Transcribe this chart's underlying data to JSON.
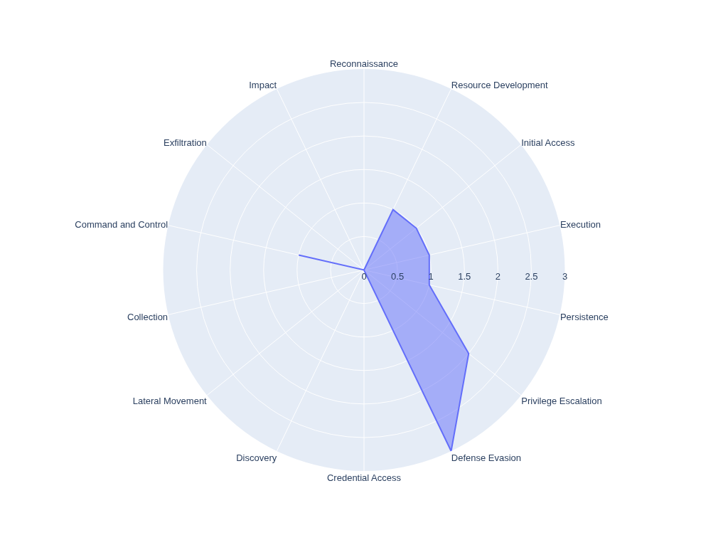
{
  "chart_data": {
    "type": "radar",
    "categories": [
      "Reconnaissance",
      "Resource Development",
      "Initial Access",
      "Execution",
      "Persistence",
      "Privilege Escalation",
      "Defense Evasion",
      "Credential Access",
      "Discovery",
      "Lateral Movement",
      "Collection",
      "Command and Control",
      "Exfiltration",
      "Impact"
    ],
    "series": [
      {
        "color": "#636efa",
        "values": [
          0,
          1,
          1,
          1,
          1,
          2,
          3,
          0,
          0,
          0,
          0,
          1,
          0,
          0
        ]
      }
    ],
    "ylim": [
      0,
      3
    ],
    "yticks": [
      0,
      0.5,
      1,
      1.5,
      2,
      2.5,
      3
    ],
    "grid": true,
    "marker": "none",
    "line_style": "solid"
  }
}
